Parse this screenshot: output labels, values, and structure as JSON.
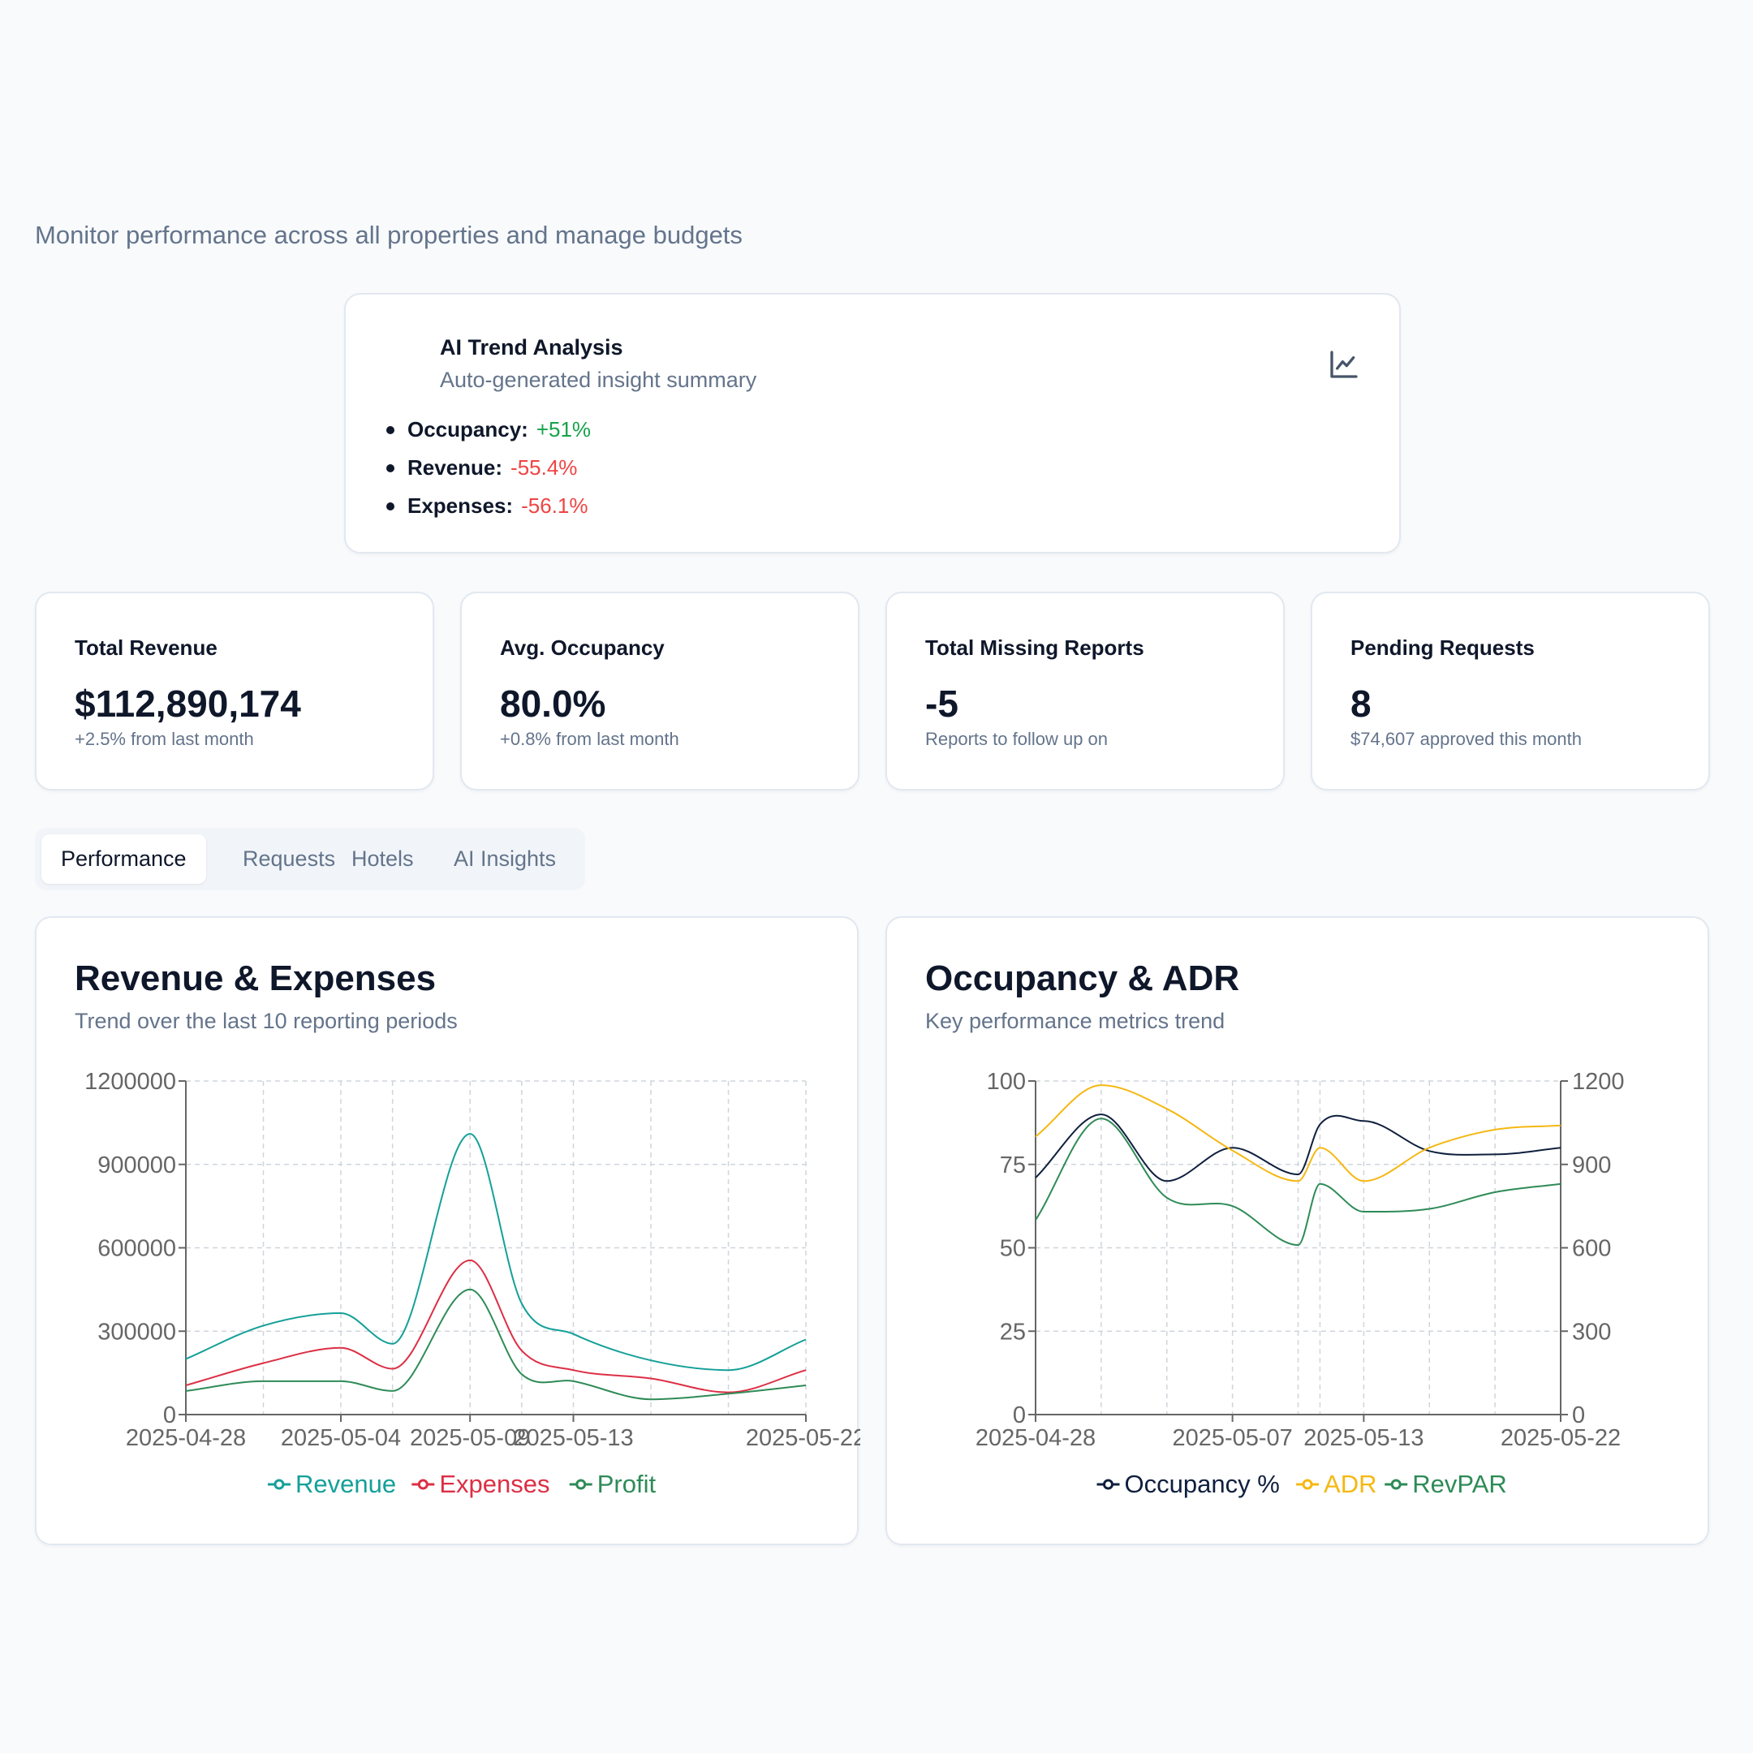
{
  "header": {
    "subtitle": "Monitor performance across all properties and manage budgets"
  },
  "ai_trend": {
    "title": "AI Trend Analysis",
    "subtitle": "Auto-generated insight summary",
    "icon": "line-chart-icon",
    "items": [
      {
        "label": "Occupancy:",
        "value": "+51%",
        "color": "#16a34a"
      },
      {
        "label": "Revenue:",
        "value": "-55.4%",
        "color": "#ef4444"
      },
      {
        "label": "Expenses:",
        "value": "-56.1%",
        "color": "#ef4444"
      }
    ]
  },
  "stats": [
    {
      "label": "Total Revenue",
      "value": "$112,890,174",
      "note": "+2.5% from last month"
    },
    {
      "label": "Avg. Occupancy",
      "value": "80.0%",
      "note": "+0.8% from last month"
    },
    {
      "label": "Total Missing Reports",
      "value": "-5",
      "note": "Reports to follow up on"
    },
    {
      "label": "Pending Requests",
      "value": "8",
      "note": "$74,607 approved this month"
    }
  ],
  "tabs": [
    {
      "label": "Performance",
      "active": true
    },
    {
      "label": "Requests",
      "active": false
    },
    {
      "label": "Hotels",
      "active": false
    },
    {
      "label": "AI Insights",
      "active": false
    }
  ],
  "charts": {
    "revenue": {
      "title": "Revenue & Expenses",
      "subtitle": "Trend over the last 10 reporting periods"
    },
    "occupancy": {
      "title": "Occupancy & ADR",
      "subtitle": "Key performance metrics trend"
    }
  },
  "chart_data": [
    {
      "type": "line",
      "x": [
        "2025-04-28",
        "2025-05-01",
        "2025-05-04",
        "2025-05-06",
        "2025-05-09",
        "2025-05-11",
        "2025-05-13",
        "2025-05-16",
        "2025-05-19",
        "2025-05-22"
      ],
      "xticks": [
        "2025-04-28",
        "2025-05-04",
        "2025-05-09",
        "2025-05-13",
        "2025-05-22"
      ],
      "ylim": [
        0,
        1200000
      ],
      "yticks": [
        0,
        300000,
        600000,
        900000,
        1200000
      ],
      "grid": true,
      "legend": "bottom",
      "series": [
        {
          "name": "Revenue",
          "color": "#14a098",
          "values": [
            200000,
            320000,
            365000,
            255000,
            1010000,
            400000,
            290000,
            195000,
            160000,
            270000
          ]
        },
        {
          "name": "Expenses",
          "color": "#dc2f45",
          "values": [
            105000,
            185000,
            240000,
            165000,
            555000,
            230000,
            160000,
            130000,
            80000,
            160000
          ]
        },
        {
          "name": "Profit",
          "color": "#2e8b57",
          "values": [
            85000,
            120000,
            120000,
            85000,
            450000,
            145000,
            120000,
            55000,
            75000,
            105000
          ]
        }
      ]
    },
    {
      "type": "line",
      "x": [
        "2025-04-28",
        "2025-05-01",
        "2025-05-04",
        "2025-05-07",
        "2025-05-10",
        "2025-05-11",
        "2025-05-13",
        "2025-05-16",
        "2025-05-19",
        "2025-05-22"
      ],
      "xticks": [
        "2025-04-28",
        "2025-05-07",
        "2025-05-13",
        "2025-05-22"
      ],
      "ylim": [
        0,
        100
      ],
      "yticks": [
        0,
        25,
        50,
        75,
        100
      ],
      "ylim_right": [
        0,
        1200
      ],
      "yticks_right": [
        0,
        300,
        600,
        900,
        1200
      ],
      "grid": true,
      "legend": "bottom",
      "series": [
        {
          "name": "Occupancy %",
          "color": "#0f1f3d",
          "axis": "left",
          "values": [
            71,
            90,
            70,
            80,
            72,
            87,
            88,
            79,
            78,
            80
          ]
        },
        {
          "name": "ADR",
          "color": "#f5b812",
          "axis": "right",
          "values": [
            1000,
            1185,
            1100,
            950,
            840,
            960,
            840,
            960,
            1025,
            1040
          ]
        },
        {
          "name": "RevPAR",
          "color": "#2e8b57",
          "axis": "right",
          "values": [
            700,
            1065,
            780,
            750,
            610,
            830,
            730,
            740,
            800,
            830
          ]
        }
      ]
    }
  ]
}
